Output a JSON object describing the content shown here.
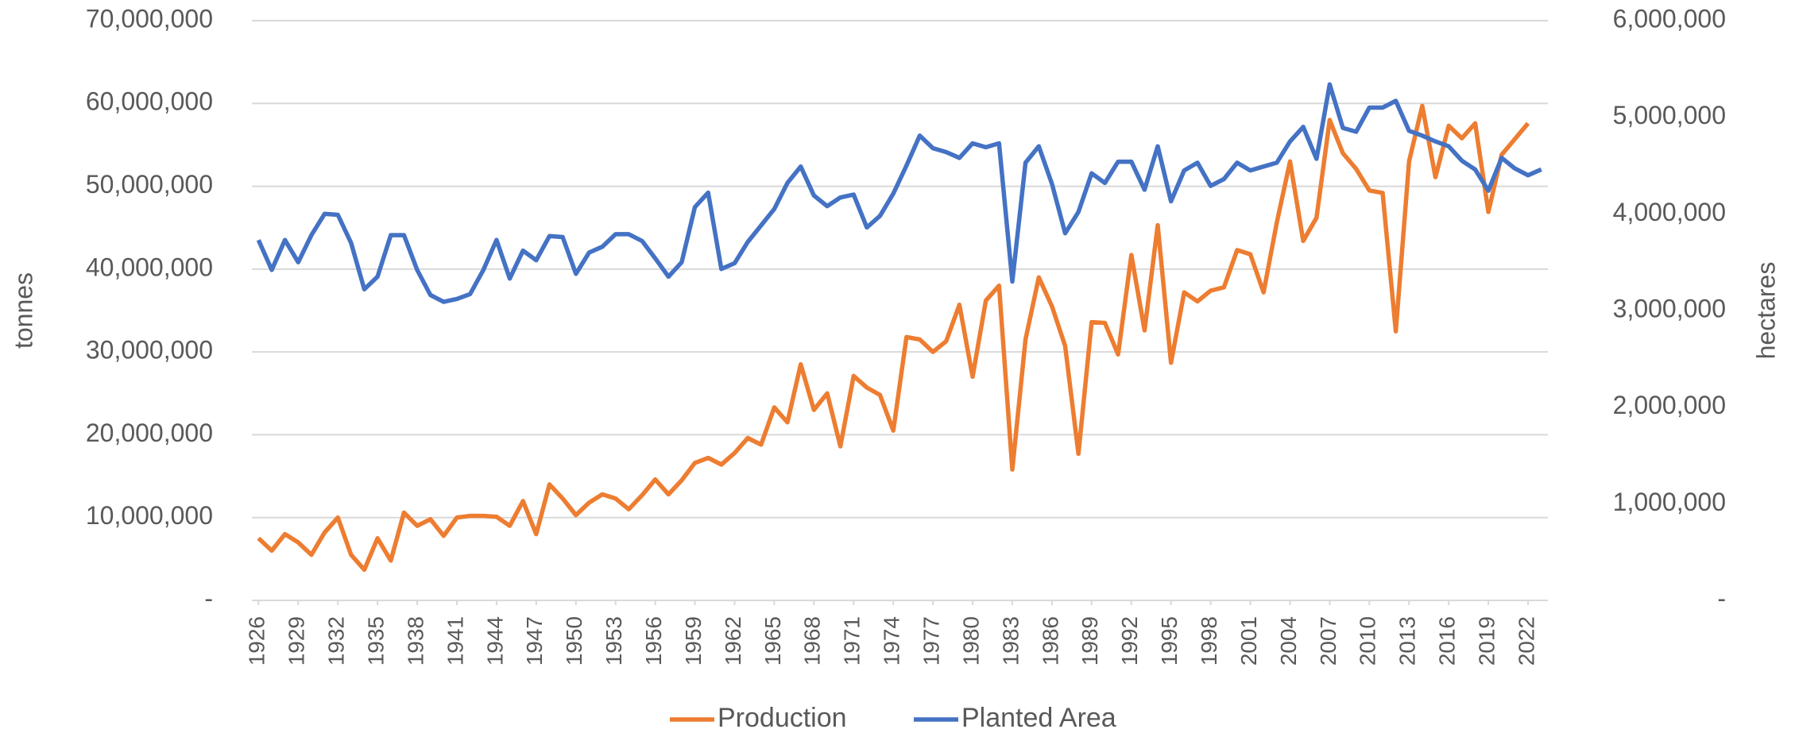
{
  "chart_data": {
    "type": "line",
    "x": [
      1926,
      1927,
      1928,
      1929,
      1930,
      1931,
      1932,
      1933,
      1934,
      1935,
      1936,
      1937,
      1938,
      1939,
      1940,
      1941,
      1942,
      1943,
      1944,
      1945,
      1946,
      1947,
      1948,
      1949,
      1950,
      1951,
      1952,
      1953,
      1954,
      1955,
      1956,
      1957,
      1958,
      1959,
      1960,
      1961,
      1962,
      1963,
      1964,
      1965,
      1966,
      1967,
      1968,
      1969,
      1970,
      1971,
      1972,
      1973,
      1974,
      1975,
      1976,
      1977,
      1978,
      1979,
      1980,
      1981,
      1982,
      1983,
      1984,
      1985,
      1986,
      1987,
      1988,
      1989,
      1990,
      1991,
      1992,
      1993,
      1994,
      1995,
      1996,
      1997,
      1998,
      1999,
      2000,
      2001,
      2002,
      2003,
      2004,
      2005,
      2006,
      2007,
      2008,
      2009,
      2010,
      2011,
      2012,
      2013,
      2014,
      2015,
      2016,
      2017,
      2018,
      2019,
      2020,
      2021,
      2022,
      2023
    ],
    "series": [
      {
        "name": "Production",
        "color": "#ed7d31",
        "values": [
          7500000,
          6000000,
          8000000,
          7000000,
          5500000,
          8200000,
          10000000,
          5500000,
          3700000,
          7500000,
          4800000,
          10600000,
          9000000,
          9800000,
          7800000,
          10000000,
          10200000,
          10200000,
          10100000,
          9000000,
          12000000,
          8000000,
          14000000,
          12300000,
          10300000,
          11800000,
          12800000,
          12300000,
          11000000,
          12700000,
          14600000,
          12800000,
          14500000,
          16600000,
          17200000,
          16400000,
          17800000,
          19600000,
          18800000,
          23300000,
          21500000,
          28500000,
          23000000,
          25000000,
          18600000,
          27100000,
          25700000,
          24800000,
          20500000,
          31800000,
          31500000,
          30000000,
          31300000,
          35700000,
          27000000,
          36200000,
          38000000,
          15800000,
          31500000,
          39000000,
          35500000,
          30700000,
          17700000,
          33600000,
          33500000,
          29700000,
          41700000,
          32600000,
          45300000,
          28700000,
          37200000,
          36100000,
          37400000,
          37800000,
          42300000,
          41800000,
          37200000,
          45600000,
          53000000,
          43400000,
          46200000,
          58000000,
          54000000,
          52100000,
          49500000,
          49200000,
          32500000,
          53000000,
          59700000,
          51100000,
          57300000,
          55800000,
          57600000,
          46900000,
          53800000,
          55700000,
          57600000,
          null
        ]
      },
      {
        "name": "Planted Area",
        "color": "#4472c4",
        "axis": "y2",
        "values": [
          3730000,
          3420000,
          3730000,
          3500000,
          3780000,
          4000000,
          3990000,
          3700000,
          3220000,
          3350000,
          3780000,
          3780000,
          3420000,
          3160000,
          3090000,
          3120000,
          3170000,
          3420000,
          3730000,
          3330000,
          3620000,
          3520000,
          3770000,
          3760000,
          3380000,
          3600000,
          3660000,
          3790000,
          3790000,
          3720000,
          3540000,
          3350000,
          3500000,
          4070000,
          4220000,
          3430000,
          3490000,
          3710000,
          3880000,
          4050000,
          4320000,
          4490000,
          4190000,
          4080000,
          4170000,
          4200000,
          3860000,
          3980000,
          4210000,
          4500000,
          4810000,
          4680000,
          4640000,
          4580000,
          4730000,
          4690000,
          4730000,
          3300000,
          4530000,
          4700000,
          4310000,
          3800000,
          4020000,
          4420000,
          4320000,
          4540000,
          4540000,
          4250000,
          4700000,
          4130000,
          4450000,
          4530000,
          4290000,
          4360000,
          4530000,
          4450000,
          4490000,
          4530000,
          4750000,
          4900000,
          4570000,
          5340000,
          4890000,
          4850000,
          5100000,
          5100000,
          5170000,
          4860000,
          4810000,
          4750000,
          4700000,
          4550000,
          4460000,
          4240000,
          4580000,
          4470000,
          4400000,
          4460000
        ]
      }
    ],
    "xlim": [
      1925.5,
      2023.5
    ],
    "xticks": [
      1926,
      1929,
      1932,
      1935,
      1938,
      1941,
      1944,
      1947,
      1950,
      1953,
      1956,
      1959,
      1962,
      1965,
      1968,
      1971,
      1974,
      1977,
      1980,
      1983,
      1986,
      1989,
      1992,
      1995,
      1998,
      2001,
      2004,
      2007,
      2010,
      2013,
      2016,
      2019,
      2022
    ],
    "ylim": [
      0,
      70000000
    ],
    "yticks": [
      {
        "value": 0,
        "label": "-"
      },
      {
        "value": 10000000,
        "label": "10,000,000"
      },
      {
        "value": 20000000,
        "label": "20,000,000"
      },
      {
        "value": 30000000,
        "label": "30,000,000"
      },
      {
        "value": 40000000,
        "label": "40,000,000"
      },
      {
        "value": 50000000,
        "label": "50,000,000"
      },
      {
        "value": 60000000,
        "label": "60,000,000"
      },
      {
        "value": 70000000,
        "label": "70,000,000"
      }
    ],
    "y2lim": [
      0,
      6000000
    ],
    "y2ticks": [
      {
        "value": 0,
        "label": "-"
      },
      {
        "value": 1000000,
        "label": "1,000,000"
      },
      {
        "value": 2000000,
        "label": "2,000,000"
      },
      {
        "value": 3000000,
        "label": "3,000,000"
      },
      {
        "value": 4000000,
        "label": "4,000,000"
      },
      {
        "value": 5000000,
        "label": "5,000,000"
      },
      {
        "value": 6000000,
        "label": "6,000,000"
      }
    ],
    "ylabel": "tonnes",
    "y2label": "hectares",
    "grid": true,
    "legend": "bottom"
  }
}
